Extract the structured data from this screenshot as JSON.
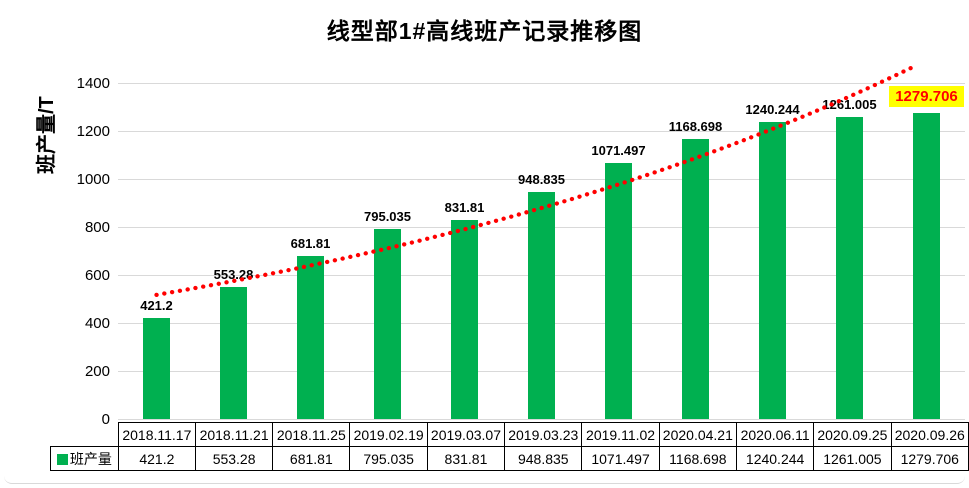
{
  "title": "线型部1#高线班产记录推移图",
  "y_axis": {
    "label": "班产量/T"
  },
  "legend": {
    "label": "班产量"
  },
  "colors": {
    "bar": "#00B050",
    "trendline": "#FF0000",
    "gridline": "#d9d9d9",
    "highlight_background": "#FFFF00",
    "highlight_text": "#FF0000"
  },
  "chart_data": {
    "type": "bar",
    "title": "线型部1#高线班产记录推移图",
    "ylabel": "班产量/T",
    "xlabel": "",
    "categories": [
      "2018.11.17",
      "2018.11.21",
      "2018.11.25",
      "2019.02.19",
      "2019.03.07",
      "2019.03.23",
      "2019.11.02",
      "2020.04.21",
      "2020.06.11",
      "2020.09.25",
      "2020.09.26"
    ],
    "series": [
      {
        "name": "班产量",
        "values": [
          421.2,
          553.28,
          681.81,
          795.035,
          831.81,
          948.835,
          1071.497,
          1168.698,
          1240.244,
          1261.005,
          1279.706
        ]
      }
    ],
    "value_labels": [
      "421.2",
      "553.28",
      "681.81",
      "795.035",
      "831.81",
      "948.835",
      "1071.497",
      "1168.698",
      "1240.244",
      "1261.005",
      "1279.706"
    ],
    "ylim": [
      0,
      1500
    ],
    "yticks": [
      0,
      200,
      400,
      600,
      800,
      1000,
      1200,
      1400
    ],
    "grid": true,
    "legend_position": "bottom-table-left",
    "trendline": {
      "type": "exponential",
      "style": "dotted",
      "color": "#FF0000"
    },
    "highlighted_label": {
      "index": 10,
      "text": "1279.706",
      "text_color": "#FF0000",
      "background": "#FFFF00"
    }
  }
}
